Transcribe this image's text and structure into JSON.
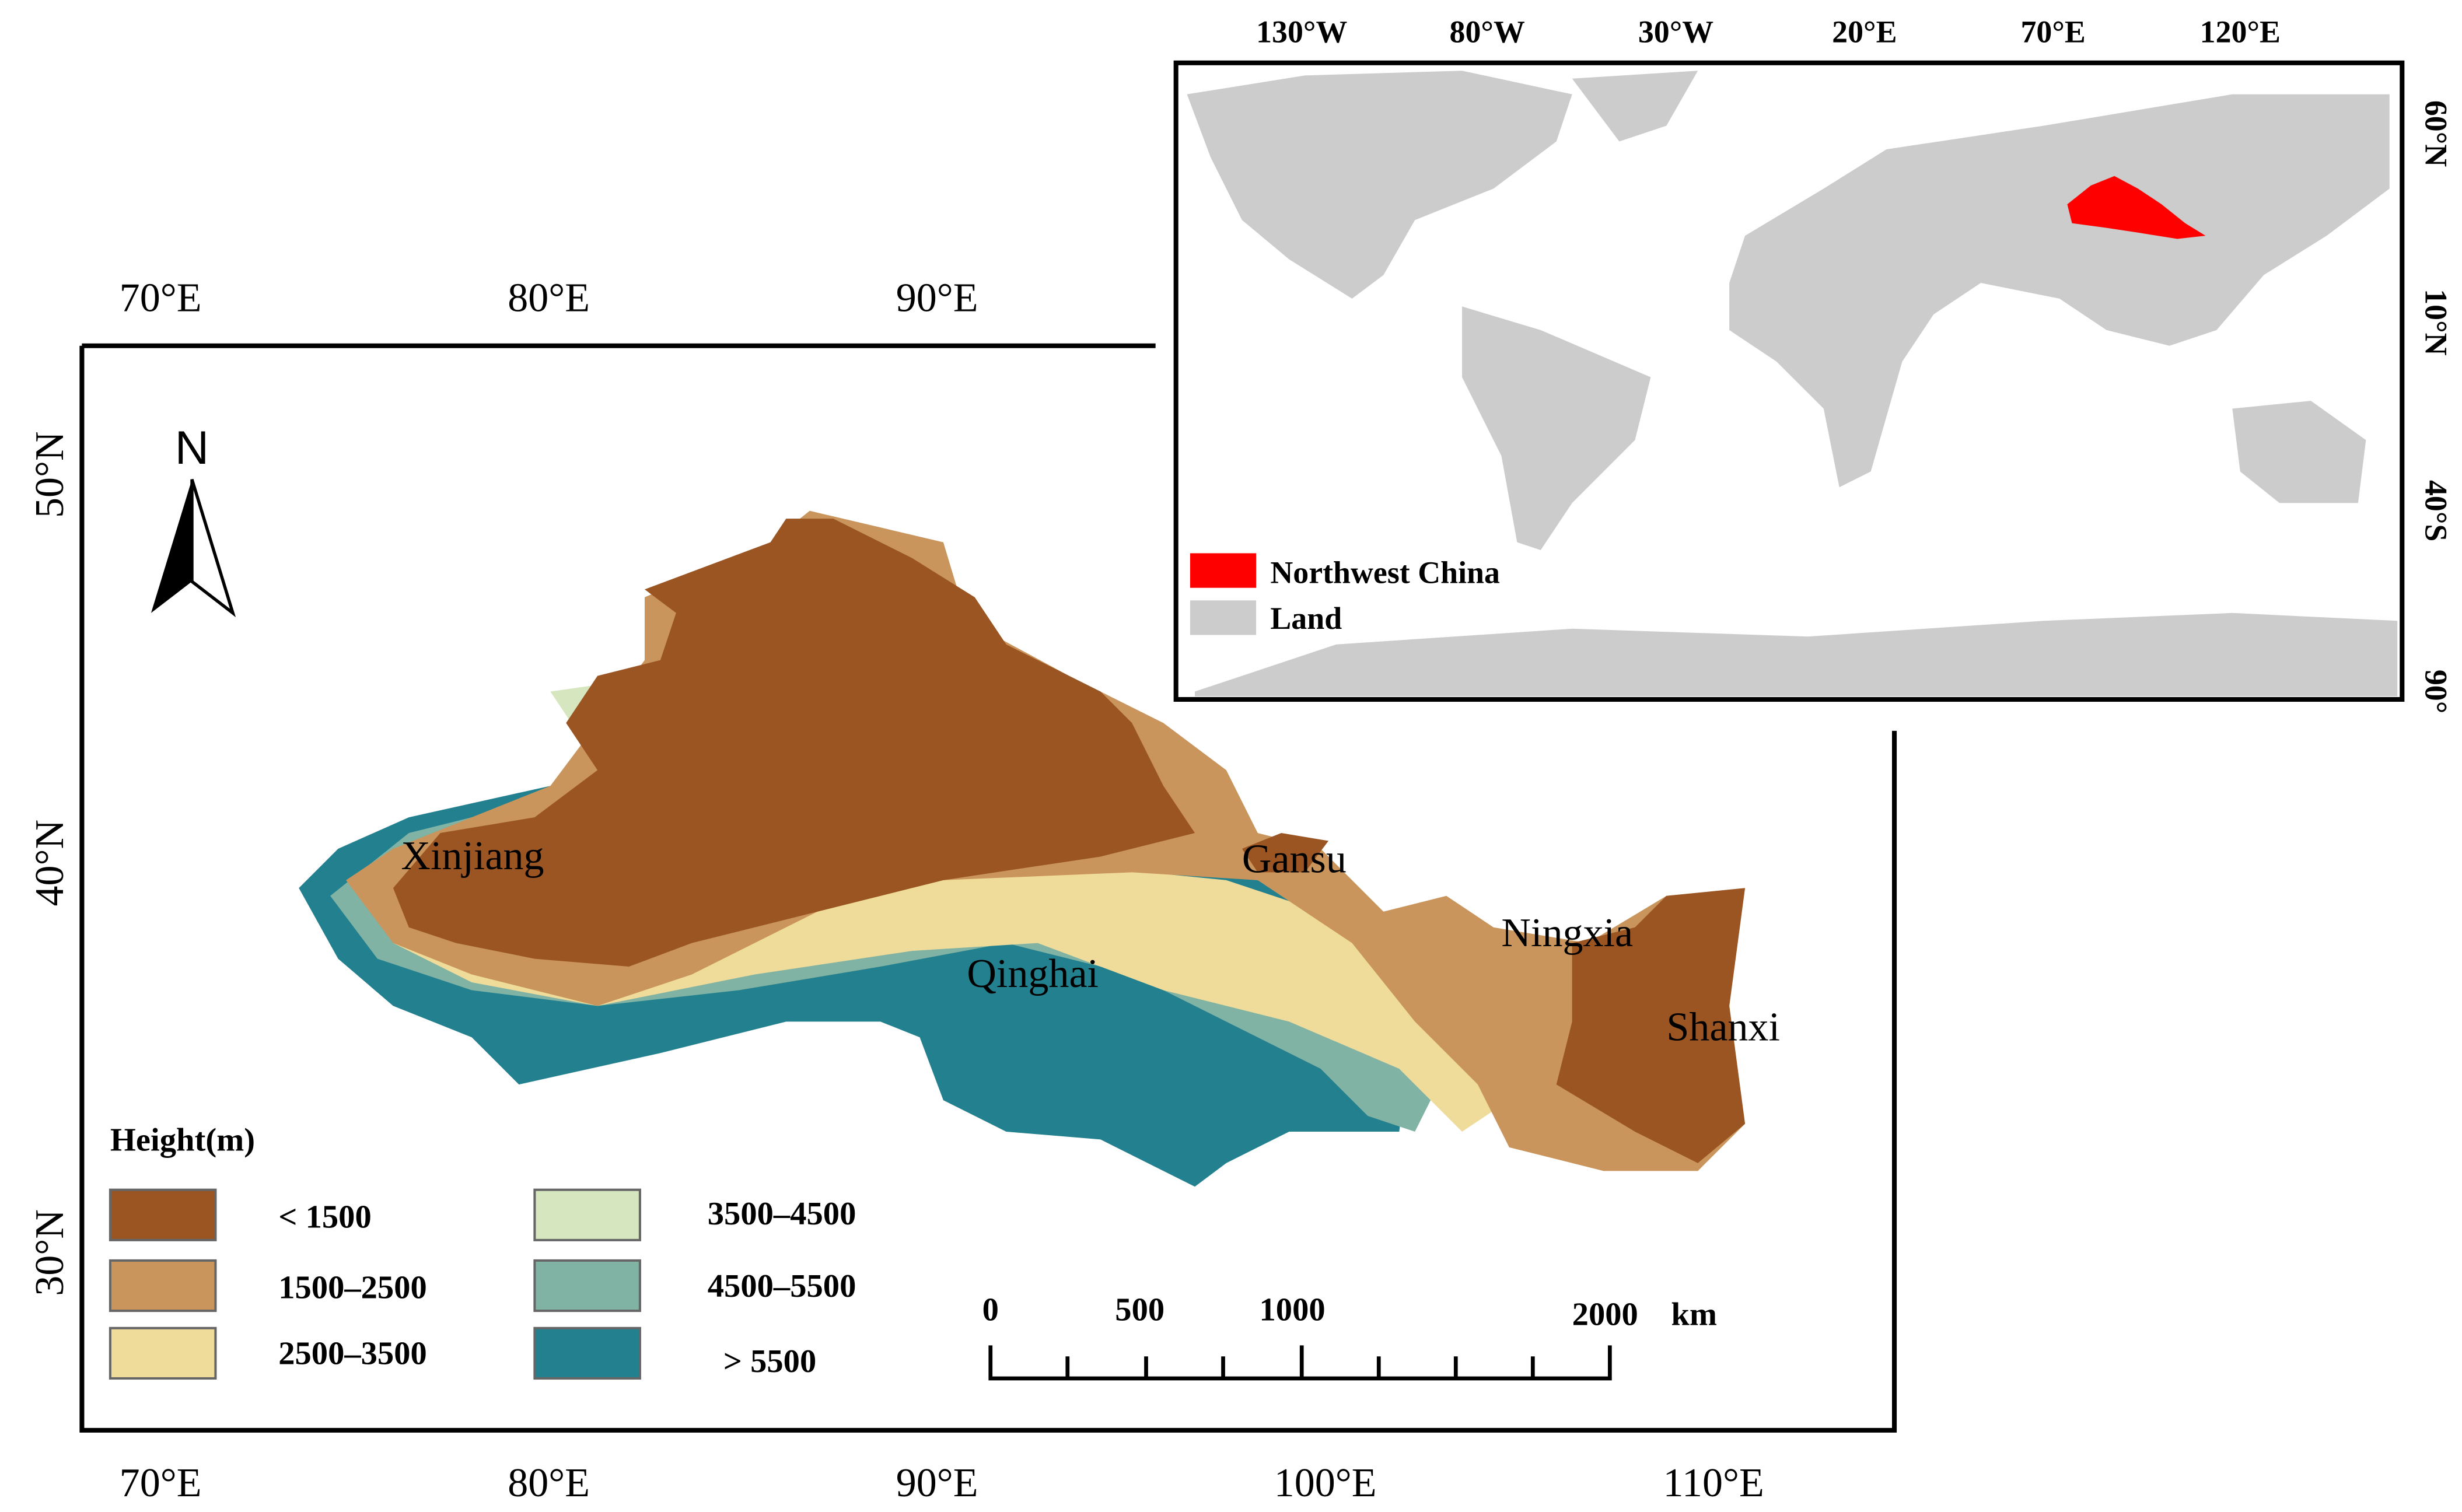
{
  "main_map": {
    "top_axis_labels": [
      "70°E",
      "80°E",
      "90°E"
    ],
    "bottom_axis_labels": [
      "70°E",
      "80°E",
      "90°E",
      "100°E",
      "110°E"
    ],
    "left_axis_labels": [
      "50°N",
      "40°N",
      "30°N"
    ],
    "north_arrow": "N",
    "regions": [
      "Xinjiang",
      "Gansu",
      "Qinghai",
      "Ningxia",
      "Shanxi"
    ]
  },
  "legend": {
    "title": "Height(m)",
    "items": [
      {
        "label": "< 1500",
        "color": "#9a5523"
      },
      {
        "label": "1500–2500",
        "color": "#c9955c"
      },
      {
        "label": "2500–3500",
        "color": "#f0dc9a"
      },
      {
        "label": "3500–4500",
        "color": "#d6e7bf"
      },
      {
        "label": "4500–5500",
        "color": "#80b3a4"
      },
      {
        "label": "> 5500",
        "color": "#23818f"
      }
    ]
  },
  "scale_bar": {
    "labels": [
      "0",
      "500",
      "1000",
      "2000"
    ],
    "unit": "km"
  },
  "inset_map": {
    "top_axis_labels": [
      "130°W",
      "80°W",
      "30°W",
      "20°E",
      "70°E",
      "120°E"
    ],
    "right_axis_labels": [
      "60°N",
      "10°N",
      "40°S",
      "90°"
    ],
    "legend": [
      {
        "label": "Northwest China",
        "color": "#ff0000"
      },
      {
        "label": "Land",
        "color": "#cccccc"
      }
    ]
  }
}
